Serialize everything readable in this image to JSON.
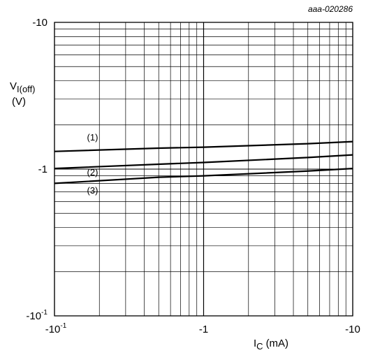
{
  "chart_data": {
    "type": "line",
    "x_scale": "log",
    "y_scale": "log",
    "xlim": [
      -0.1,
      -10
    ],
    "ylim": [
      -0.1,
      -10
    ],
    "grid": true,
    "reference": "aaa-020286",
    "xlabel": {
      "main": "I",
      "sub": "C",
      "unit": "(mA)"
    },
    "ylabel": {
      "main": "V",
      "sub": "I(off)",
      "unit": "(V)"
    },
    "x_ticks": [
      {
        "value": -0.1,
        "base": "-10",
        "exp": "-1"
      },
      {
        "value": -1,
        "base": "-1",
        "exp": ""
      },
      {
        "value": -10,
        "base": "-10",
        "exp": ""
      }
    ],
    "y_ticks": [
      {
        "value": -10,
        "base": "-10",
        "exp": ""
      },
      {
        "value": -1,
        "base": "-1",
        "exp": ""
      },
      {
        "value": -0.1,
        "base": "-10",
        "exp": "-1"
      }
    ],
    "series": [
      {
        "label": "(1)",
        "x": [
          -0.1,
          -0.5,
          -1,
          -5,
          -10
        ],
        "y": [
          -1.32,
          -1.39,
          -1.41,
          -1.49,
          -1.54
        ]
      },
      {
        "label": "(2)",
        "x": [
          -0.1,
          -0.5,
          -1,
          -5,
          -10
        ],
        "y": [
          -1.01,
          -1.08,
          -1.11,
          -1.2,
          -1.25
        ]
      },
      {
        "label": "(3)",
        "x": [
          -0.1,
          -0.5,
          -1,
          -5,
          -10
        ],
        "y": [
          -0.8,
          -0.88,
          -0.9,
          -0.97,
          -1.01
        ]
      }
    ]
  }
}
